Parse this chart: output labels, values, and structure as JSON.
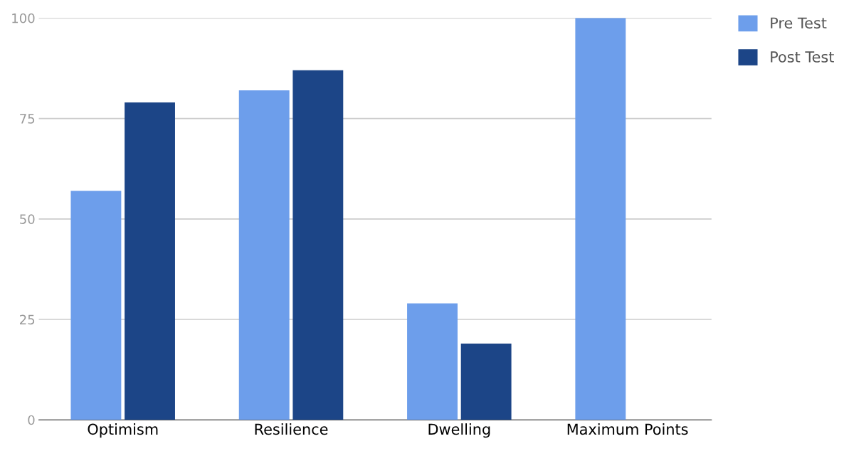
{
  "chart_data": {
    "type": "bar",
    "categories": [
      "Optimism",
      "Resilience",
      "Dwelling",
      "Maximum Points"
    ],
    "series": [
      {
        "name": "Pre Test",
        "color": "#6d9eeb",
        "values": [
          57,
          82,
          29,
          100
        ]
      },
      {
        "name": "Post Test",
        "color": "#1c4587",
        "values": [
          79,
          87,
          19,
          null
        ]
      }
    ],
    "ylim": [
      0,
      100
    ],
    "yticks": [
      0,
      25,
      50,
      75,
      100
    ],
    "grid": "y",
    "legend": "top right"
  }
}
